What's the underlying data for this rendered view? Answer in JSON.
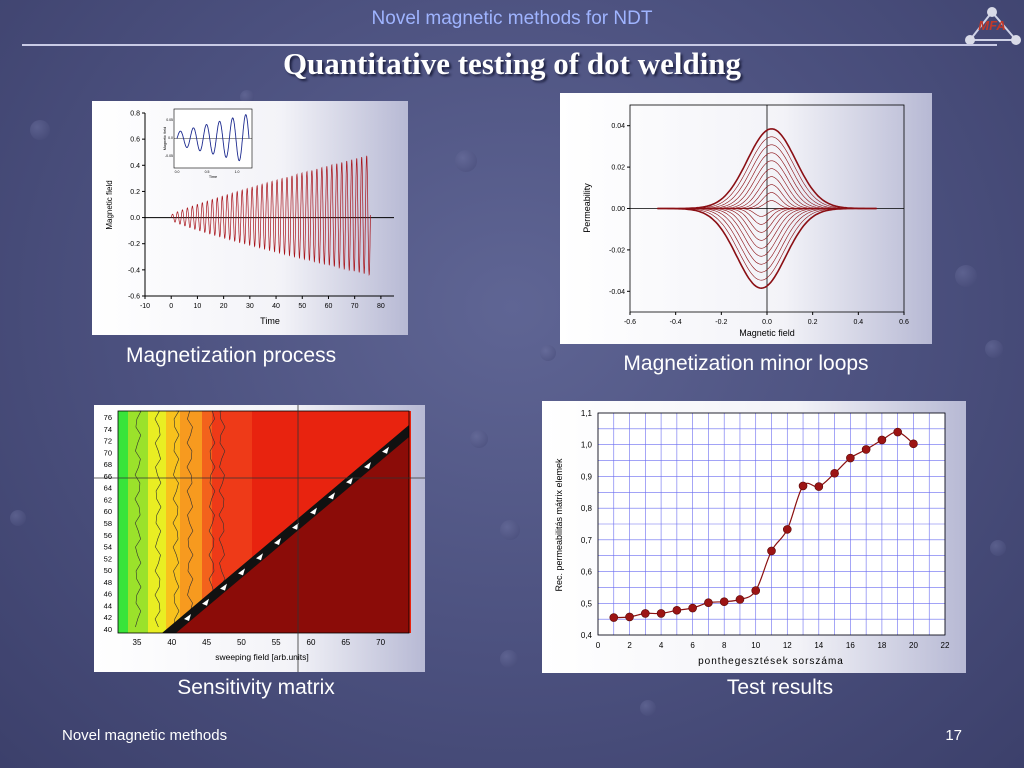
{
  "header": {
    "title": "Novel magnetic methods for NDT",
    "logo_text": "MFA"
  },
  "slide_title": "Quantitative testing of dot welding",
  "captions": {
    "magnetization": "Magnetization process",
    "minor_loops": "Magnetization minor loops",
    "sensitivity": "Sensitivity matrix",
    "test_results": "Test results"
  },
  "footer": {
    "left": "Novel magnetic methods",
    "page": "17"
  },
  "chart_data": [
    {
      "type": "line",
      "ylabel": "Magnetic field",
      "xlabel": "Time",
      "xlim": [
        -10,
        85
      ],
      "ylim": [
        -0.6,
        0.8
      ],
      "xticks": [
        "-10",
        "0",
        "10",
        "20",
        "30",
        "40",
        "50",
        "60",
        "70",
        "80"
      ],
      "yticks": [
        "-0.6",
        "-0.4",
        "-0.2",
        "0.0",
        "0.2",
        "0.4",
        "0.6",
        "0.8"
      ],
      "inset": {
        "ylabel": "Magnetic field",
        "xlabel": "Time",
        "yticks": [
          "0.05",
          "0.0",
          "-0.05"
        ],
        "xticks": [
          "0.0",
          "0.5",
          "1.0"
        ]
      }
    },
    {
      "type": "line",
      "ylabel": "Permeability",
      "xlabel": "Magnetic field",
      "xlim": [
        -0.6,
        0.6
      ],
      "ylim": [
        -0.05,
        0.05
      ],
      "xticks": [
        "-0.6",
        "-0.4",
        "-0.2",
        "0.0",
        "0.2",
        "0.4",
        "0.6"
      ],
      "yticks": [
        "0.04",
        "0.02",
        "0.00",
        "-0.02",
        "-0.04"
      ]
    },
    {
      "type": "heatmap",
      "xlabel": "sweeping field [arb.units]",
      "xticks": [
        "35",
        "40",
        "45",
        "50",
        "55",
        "60",
        "65",
        "70"
      ],
      "yticks": [
        "40",
        "42",
        "44",
        "46",
        "48",
        "50",
        "52",
        "54",
        "56",
        "58",
        "60",
        "62",
        "64",
        "66",
        "68",
        "70",
        "72",
        "74",
        "76"
      ]
    },
    {
      "type": "line",
      "ylabel": "Rec. permeabilitás mátrix elemek",
      "xlabel": "ponthegesztések sorszáma",
      "xlim": [
        0,
        22
      ],
      "ylim": [
        0.4,
        1.1
      ],
      "xticks": [
        "0",
        "2",
        "4",
        "6",
        "8",
        "10",
        "12",
        "14",
        "16",
        "18",
        "20",
        "22"
      ],
      "yticks": [
        "0,4",
        "0,5",
        "0,6",
        "0,7",
        "0,8",
        "0,9",
        "1,0",
        "1,1"
      ],
      "x": [
        1,
        2,
        3,
        4,
        5,
        6,
        7,
        8,
        9,
        10,
        11,
        12,
        13,
        14,
        15,
        16,
        17,
        18,
        19,
        20
      ],
      "y": [
        0.455,
        0.457,
        0.468,
        0.468,
        0.478,
        0.485,
        0.502,
        0.505,
        0.512,
        0.54,
        0.665,
        0.733,
        0.87,
        0.868,
        0.91,
        0.958,
        0.985,
        1.015,
        1.04,
        1.003
      ]
    }
  ]
}
